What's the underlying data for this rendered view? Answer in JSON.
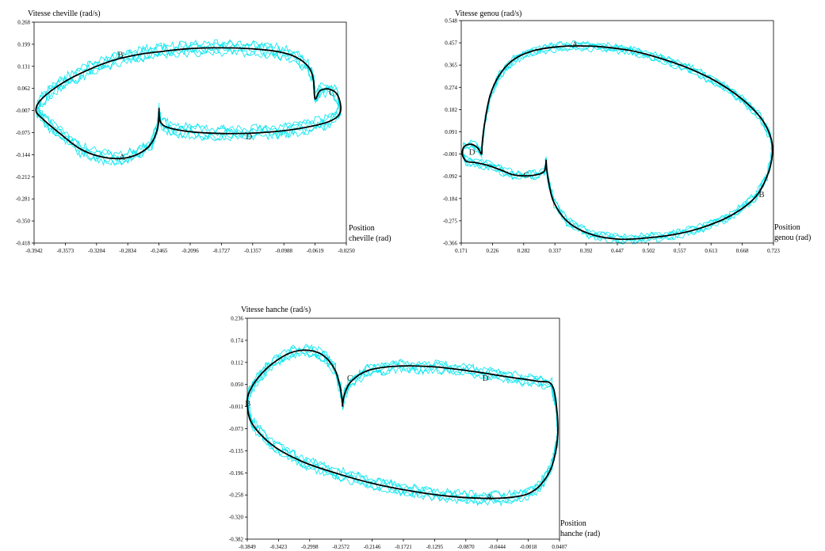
{
  "colors": {
    "trials": "#00e5ee",
    "mean": "#000000",
    "frame": "#000000",
    "background": "#ffffff"
  },
  "chart_data": [
    {
      "type": "line",
      "ylabel": "Vitesse cheville (rad/s)",
      "xlabel_1": "Position",
      "xlabel_2": "cheville (rad)",
      "xlim": [
        -0.3942,
        -0.025
      ],
      "ylim": [
        -0.418,
        0.268
      ],
      "x_ticks": [
        "-0.3942",
        "-0.3573",
        "-0.3204",
        "-0.2834",
        "-0.2465",
        "-0.2096",
        "-0.1727",
        "-0.1357",
        "-0.0988",
        "-0.0619",
        "-0.0250"
      ],
      "y_ticks": [
        "0.268",
        "0.199",
        "0.131",
        "0.062",
        "-0.007",
        "-0.075",
        "-0.144",
        "-0.212",
        "-0.281",
        "-0.350",
        "-0.418"
      ],
      "grid": false,
      "series": [
        {
          "role": "mean",
          "x": [
            -0.2465,
            -0.248,
            -0.256,
            -0.27,
            -0.29,
            -0.315,
            -0.34,
            -0.365,
            -0.385,
            -0.392,
            -0.385,
            -0.36,
            -0.33,
            -0.3,
            -0.27,
            -0.24,
            -0.215,
            -0.19,
            -0.16,
            -0.13,
            -0.105,
            -0.085,
            -0.07,
            -0.064,
            -0.062,
            -0.056,
            -0.045,
            -0.035,
            -0.032,
            -0.045,
            -0.08,
            -0.125,
            -0.17,
            -0.21,
            -0.235,
            -0.244,
            -0.246,
            -0.2465
          ],
          "y": [
            -0.005,
            -0.06,
            -0.11,
            -0.14,
            -0.155,
            -0.15,
            -0.125,
            -0.075,
            -0.03,
            -0.005,
            0.03,
            0.08,
            0.12,
            0.15,
            0.168,
            0.178,
            0.185,
            0.188,
            0.188,
            0.184,
            0.176,
            0.16,
            0.13,
            0.09,
            0.03,
            0.055,
            0.06,
            0.04,
            -0.01,
            -0.04,
            -0.062,
            -0.075,
            -0.078,
            -0.072,
            -0.06,
            -0.045,
            -0.025,
            -0.005
          ]
        }
      ],
      "trials": {
        "count": 5,
        "center": [
          -0.3942,
          -0.1357,
          -0.025,
          0.199,
          0.04,
          -0.075,
          -0.418
        ]
      },
      "annotations": [
        {
          "text": "A",
          "x": -0.29,
          "y": -0.15
        },
        {
          "text": "B",
          "x": -0.292,
          "y": 0.168
        },
        {
          "text": "C",
          "x": -0.042,
          "y": 0.05
        },
        {
          "text": "D",
          "x": -0.14,
          "y": -0.086
        }
      ]
    },
    {
      "type": "line",
      "ylabel": "Vitesse genou (rad/s)",
      "xlabel_1": "Position",
      "xlabel_2": "genou (rad)",
      "xlim": [
        0.171,
        0.723
      ],
      "ylim": [
        -0.366,
        0.548
      ],
      "x_ticks": [
        "0.171",
        "0.226",
        "0.282",
        "0.337",
        "0.392",
        "0.447",
        "0.502",
        "0.557",
        "0.613",
        "0.668",
        "0.723"
      ],
      "y_ticks": [
        "0.548",
        "0.457",
        "0.365",
        "0.274",
        "0.182",
        "0.091",
        "-0.001",
        "-0.092",
        "-0.184",
        "-0.275",
        "-0.366"
      ],
      "grid": false,
      "series": [
        {
          "role": "mean",
          "x": [
            0.321,
            0.318,
            0.305,
            0.285,
            0.262,
            0.24,
            0.215,
            0.195,
            0.18,
            0.173,
            0.176,
            0.188,
            0.2,
            0.207,
            0.208,
            0.212,
            0.222,
            0.24,
            0.265,
            0.3,
            0.34,
            0.38,
            0.42,
            0.47,
            0.52,
            0.57,
            0.62,
            0.665,
            0.7,
            0.718,
            0.721,
            0.712,
            0.69,
            0.65,
            0.6,
            0.55,
            0.5,
            0.45,
            0.4,
            0.36,
            0.335,
            0.326,
            0.322,
            0.321
          ],
          "y": [
            -0.03,
            -0.07,
            -0.085,
            -0.09,
            -0.085,
            -0.065,
            -0.045,
            -0.035,
            -0.03,
            -0.001,
            0.03,
            0.04,
            0.025,
            0.0,
            0.04,
            0.12,
            0.24,
            0.33,
            0.39,
            0.425,
            0.44,
            0.444,
            0.44,
            0.425,
            0.395,
            0.355,
            0.3,
            0.23,
            0.15,
            0.07,
            -0.001,
            -0.09,
            -0.18,
            -0.25,
            -0.3,
            -0.33,
            -0.345,
            -0.35,
            -0.33,
            -0.28,
            -0.2,
            -0.12,
            -0.06,
            -0.03
          ]
        }
      ],
      "trials": {
        "count": 5,
        "center": [
          0.171,
          0.447,
          0.723,
          0.52,
          0.04,
          0.08,
          -0.366
        ]
      },
      "annotations": [
        {
          "text": "A",
          "x": 0.372,
          "y": 0.452
        },
        {
          "text": "B",
          "x": 0.702,
          "y": -0.164
        },
        {
          "text": "C",
          "x": 0.286,
          "y": -0.084
        },
        {
          "text": "D",
          "x": 0.19,
          "y": 0.01
        }
      ]
    },
    {
      "type": "line",
      "ylabel": "Vitesse hanche (rad/s)",
      "xlabel_1": "Position",
      "xlabel_2": "hanche (rad)",
      "xlim": [
        -0.3849,
        0.0407
      ],
      "ylim": [
        -0.382,
        0.236
      ],
      "x_ticks": [
        "-0.3849",
        "-0.3423",
        "-0.2998",
        "-0.2572",
        "-0.2146",
        "-0.1721",
        "-0.1295",
        "-0.0870",
        "-0.0444",
        "-0.0018",
        "0.0407"
      ],
      "y_ticks": [
        "0.236",
        "0.174",
        "0.112",
        "0.050",
        "-0.011",
        "-0.073",
        "-0.135",
        "-0.196",
        "-0.258",
        "-0.320",
        "-0.382"
      ],
      "grid": false,
      "series": [
        {
          "role": "mean",
          "x": [
            -0.255,
            -0.258,
            -0.265,
            -0.28,
            -0.3,
            -0.325,
            -0.35,
            -0.37,
            -0.382,
            -0.3849,
            -0.378,
            -0.35,
            -0.31,
            -0.26,
            -0.21,
            -0.16,
            -0.11,
            -0.06,
            -0.025,
            -0.002,
            0.015,
            0.03,
            0.038,
            0.037,
            0.03,
            0.01,
            -0.03,
            -0.08,
            -0.13,
            -0.18,
            -0.22,
            -0.243,
            -0.252,
            -0.255
          ],
          "y": [
            -0.005,
            0.04,
            0.09,
            0.13,
            0.146,
            0.14,
            0.11,
            0.07,
            0.03,
            -0.005,
            -0.06,
            -0.12,
            -0.165,
            -0.2,
            -0.228,
            -0.248,
            -0.262,
            -0.268,
            -0.265,
            -0.255,
            -0.23,
            -0.18,
            -0.1,
            -0.02,
            0.05,
            0.06,
            0.072,
            0.088,
            0.1,
            0.102,
            0.09,
            0.06,
            0.025,
            -0.005
          ]
        }
      ],
      "trials": {
        "count": 5,
        "center": [
          -0.3849,
          -0.1721,
          0.0407,
          0.236,
          0.07,
          -0.08,
          -0.382
        ]
      },
      "annotations": [
        {
          "text": "A",
          "x": -0.055,
          "y": -0.262
        },
        {
          "text": "B",
          "x": -0.384,
          "y": -0.001
        },
        {
          "text": "C",
          "x": -0.245,
          "y": 0.07
        },
        {
          "text": "D",
          "x": -0.06,
          "y": 0.07
        }
      ]
    }
  ]
}
